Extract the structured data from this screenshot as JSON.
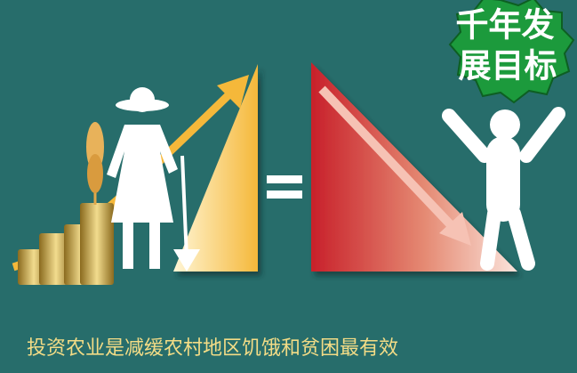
{
  "badge": {
    "lines": [
      "千年发",
      "展目标"
    ]
  },
  "caption": "投资农业是减缓农村地区饥饿和贫困最有效"
}
